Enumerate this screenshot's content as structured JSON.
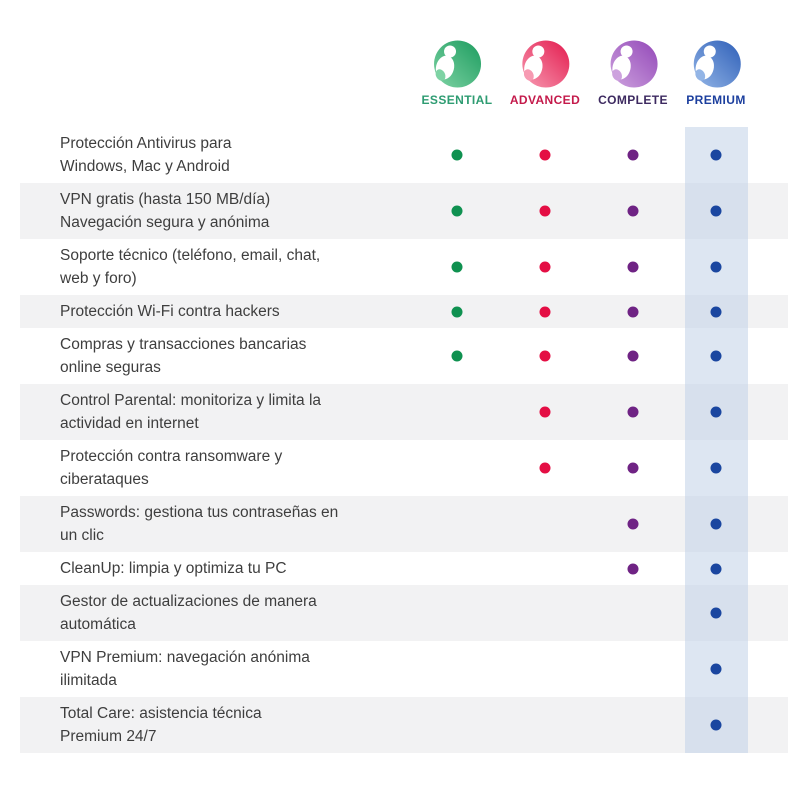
{
  "plans": [
    {
      "name": "ESSENTIAL",
      "label_color": "#2e9c72",
      "dot_color": "#0f9150",
      "logo_light": "#7ed3a4",
      "logo_dark": "#1d9c5f",
      "highlighted": false
    },
    {
      "name": "ADVANCED",
      "label_color": "#c41a4b",
      "dot_color": "#e40e44",
      "logo_light": "#f79ab2",
      "logo_dark": "#e31b4e",
      "highlighted": false
    },
    {
      "name": "COMPLETE",
      "label_color": "#3d2a60",
      "dot_color": "#6f2384",
      "logo_light": "#cda2de",
      "logo_dark": "#9348b8",
      "highlighted": false
    },
    {
      "name": "PREMIUM",
      "label_color": "#1c3f9e",
      "dot_color": "#1a46a0",
      "logo_light": "#93b5e6",
      "logo_dark": "#2e5fb8",
      "highlighted": true
    }
  ],
  "features": [
    {
      "text": "Protección Antivirus para\nWindows, Mac y Android",
      "included": [
        true,
        true,
        true,
        true
      ]
    },
    {
      "text": "VPN gratis (hasta 150 MB/día)\nNavegación segura y anónima",
      "included": [
        true,
        true,
        true,
        true
      ]
    },
    {
      "text": "Soporte técnico (teléfono, email, chat,\nweb y foro)",
      "included": [
        true,
        true,
        true,
        true
      ]
    },
    {
      "text": "Protección Wi-Fi contra hackers",
      "included": [
        true,
        true,
        true,
        true
      ]
    },
    {
      "text": "Compras y transacciones bancarias\nonline seguras",
      "included": [
        true,
        true,
        true,
        true
      ]
    },
    {
      "text": "Control Parental: monitoriza y limita la\nactividad en internet",
      "included": [
        false,
        true,
        true,
        true
      ]
    },
    {
      "text": "Protección contra ransomware y\nciberataques",
      "included": [
        false,
        true,
        true,
        true
      ]
    },
    {
      "text": "Passwords: gestiona tus contraseñas en\nun clic",
      "included": [
        false,
        false,
        true,
        true
      ]
    },
    {
      "text": "CleanUp: limpia y optimiza tu PC",
      "included": [
        false,
        false,
        true,
        true
      ]
    },
    {
      "text": "Gestor de actualizaciones de manera\nautomática",
      "included": [
        false,
        false,
        false,
        true
      ]
    },
    {
      "text": "VPN Premium: navegación anónima\nilimitada",
      "included": [
        false,
        false,
        false,
        true
      ]
    },
    {
      "text": "Total Care: asistencia técnica\nPremium 24/7",
      "included": [
        false,
        false,
        false,
        true
      ]
    }
  ],
  "style": {
    "background": "#ffffff",
    "stripe_color": "#f2f2f3",
    "premium_band_color": "rgba(193,209,231,0.55)",
    "text_color": "#3e3e3e"
  }
}
